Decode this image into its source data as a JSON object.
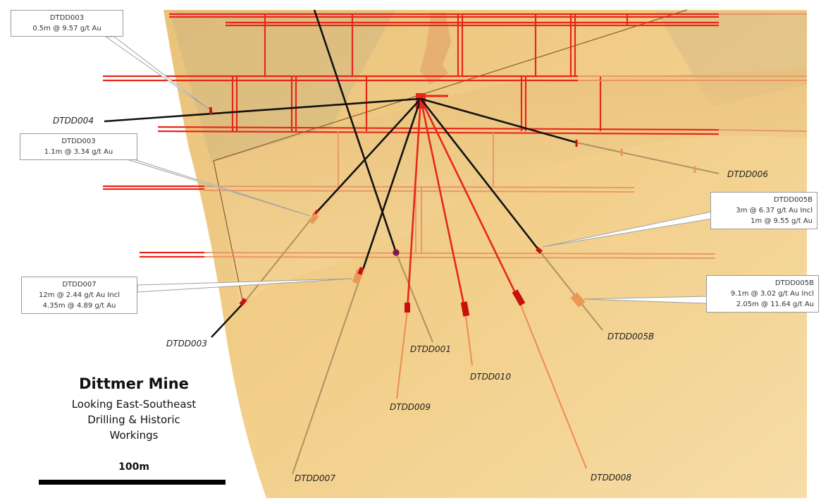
{
  "caption": {
    "title": "Dittmer Mine",
    "lines": [
      "Looking East-Southeast",
      "Drilling & Historic",
      "Workings"
    ]
  },
  "scale_bar": {
    "label": "100m"
  },
  "drill_holes": [
    {
      "id": "DTDD004",
      "label": "DTDD004",
      "color": "#111111"
    },
    {
      "id": "DTDD006",
      "label": "DTDD006",
      "color": "#111111"
    },
    {
      "id": "DTDD003",
      "label": "DTDD003",
      "color": "#111111"
    },
    {
      "id": "DTDD007",
      "label": "DTDD007",
      "color": "#111111"
    },
    {
      "id": "DTDD001",
      "label": "DTDD001",
      "color": "#111111"
    },
    {
      "id": "DTDD009",
      "label": "DTDD009",
      "color": "#e8261a"
    },
    {
      "id": "DTDD010",
      "label": "DTDD010",
      "color": "#e8261a"
    },
    {
      "id": "DTDD008",
      "label": "DTDD008",
      "color": "#e8261a"
    },
    {
      "id": "DTDD005B",
      "label": "DTDD005B",
      "color": "#111111"
    }
  ],
  "callouts": [
    {
      "id": "c1",
      "lines": [
        "DTDD003",
        "0.5m @ 9.57 g/t Au"
      ]
    },
    {
      "id": "c2",
      "lines": [
        "DTDD003",
        "1.1m @ 3.34 g/t Au"
      ]
    },
    {
      "id": "c3",
      "lines": [
        "DTDD007",
        "12m @ 2.44 g/t Au Incl",
        "4.35m @ 4.89 g/t Au"
      ]
    },
    {
      "id": "c4",
      "lines": [
        "DTDD005B",
        "3m @ 6.37 g/t Au Incl",
        "1m @ 9.55 g/t Au"
      ]
    },
    {
      "id": "c5",
      "lines": [
        "DTDD005B",
        "9.1m @ 3.02 g/t Au Incl",
        "2.05m @ 11.64 g/t Au"
      ]
    }
  ],
  "colors": {
    "orebody": "#f0c87a",
    "workings": "#e8261a",
    "lower_trace": "#b09060",
    "intercept_orange": "#e89a55",
    "intercept_red": "#c8100c"
  }
}
